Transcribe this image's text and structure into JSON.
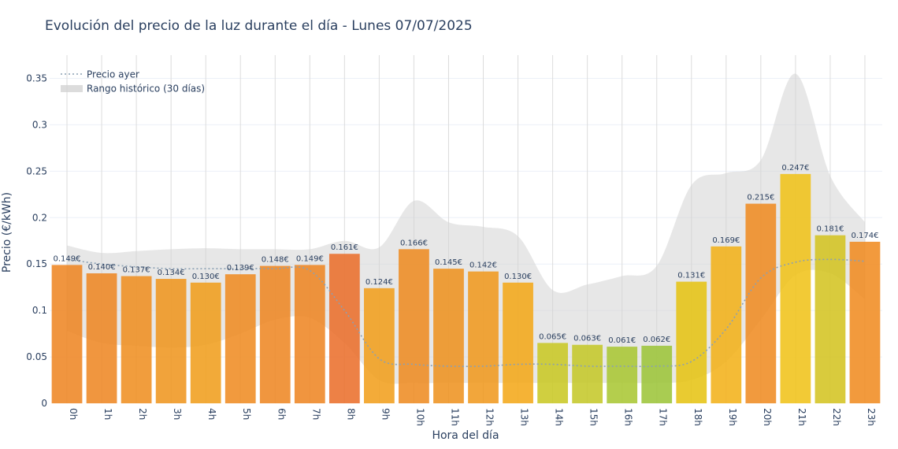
{
  "chart_data": {
    "type": "bar",
    "title": "Evolución del precio de la luz durante el día - Lunes 07/07/2025",
    "xlabel": "Hora del día",
    "ylabel": "Precio (€/kWh)",
    "ylim": [
      0,
      0.375
    ],
    "yticks": [
      0,
      0.05,
      0.1,
      0.15,
      0.2,
      0.25,
      0.3,
      0.35
    ],
    "ytick_labels": [
      "0",
      "0.05",
      "0.1",
      "0.15",
      "0.2",
      "0.25",
      "0.3",
      "0.35"
    ],
    "categories": [
      "0h",
      "1h",
      "2h",
      "3h",
      "4h",
      "5h",
      "6h",
      "7h",
      "8h",
      "9h",
      "10h",
      "11h",
      "12h",
      "13h",
      "14h",
      "15h",
      "16h",
      "17h",
      "18h",
      "19h",
      "20h",
      "21h",
      "22h",
      "23h"
    ],
    "values": [
      0.149,
      0.14,
      0.137,
      0.134,
      0.13,
      0.139,
      0.148,
      0.149,
      0.161,
      0.124,
      0.166,
      0.145,
      0.142,
      0.13,
      0.065,
      0.063,
      0.061,
      0.062,
      0.131,
      0.169,
      0.215,
      0.247,
      0.181,
      0.174
    ],
    "bar_labels": [
      "0.149€",
      "0.140€",
      "0.137€",
      "0.134€",
      "0.130€",
      "0.139€",
      "0.148€",
      "0.149€",
      "0.161€",
      "0.124€",
      "0.166€",
      "0.145€",
      "0.142€",
      "0.130€",
      "0.065€",
      "0.063€",
      "0.061€",
      "0.062€",
      "0.131€",
      "0.169€",
      "0.215€",
      "0.247€",
      "0.181€",
      "0.174€"
    ],
    "bar_colors": [
      "#ee8624",
      "#ee8824",
      "#ef8f22",
      "#ef9620",
      "#f09e1e",
      "#ef8c23",
      "#ee8824",
      "#ee8624",
      "#eb6f2c",
      "#f19f1e",
      "#ee8c23",
      "#ee9321",
      "#f09a20",
      "#f4a81a",
      "#c9c825",
      "#c5c82a",
      "#aac734",
      "#9dc53a",
      "#e6c414",
      "#f2b21a",
      "#ef8c23",
      "#f0c31a",
      "#d4c422",
      "#f08c22"
    ],
    "bar_opacity": 0.88,
    "series": [
      {
        "name": "Precio ayer",
        "type": "line",
        "style": "dotted",
        "color": "#8aa0b4",
        "values": [
          0.155,
          0.15,
          0.147,
          0.145,
          0.145,
          0.145,
          0.145,
          0.143,
          0.1,
          0.048,
          0.042,
          0.04,
          0.04,
          0.042,
          0.042,
          0.04,
          0.04,
          0.04,
          0.045,
          0.08,
          0.135,
          0.152,
          0.155,
          0.153
        ]
      },
      {
        "name": "Rango histórico (30 días)",
        "type": "band",
        "color": "#d3d3d3",
        "upper": [
          0.17,
          0.162,
          0.164,
          0.166,
          0.167,
          0.166,
          0.166,
          0.166,
          0.175,
          0.168,
          0.218,
          0.195,
          0.19,
          0.18,
          0.122,
          0.128,
          0.137,
          0.148,
          0.235,
          0.248,
          0.262,
          0.355,
          0.245,
          0.195
        ],
        "lower": [
          0.078,
          0.065,
          0.062,
          0.06,
          0.063,
          0.075,
          0.09,
          0.092,
          0.065,
          0.025,
          0.022,
          0.022,
          0.022,
          0.022,
          0.022,
          0.022,
          0.022,
          0.022,
          0.025,
          0.045,
          0.09,
          0.138,
          0.14,
          0.112
        ]
      }
    ],
    "legend_position": "top-left",
    "grid": true
  }
}
